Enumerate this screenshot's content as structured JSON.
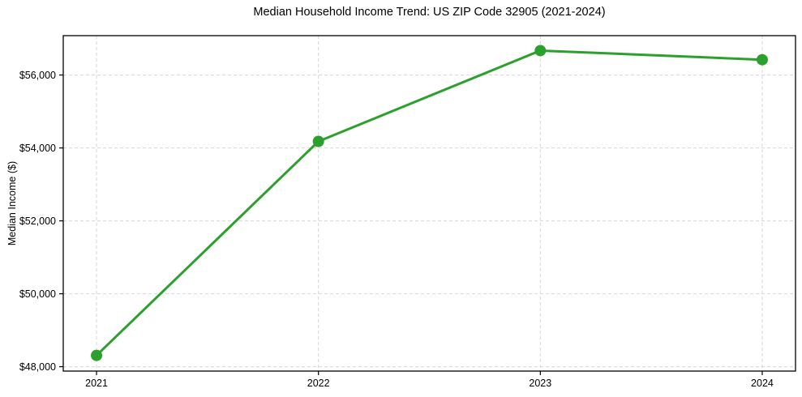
{
  "chart_data": {
    "type": "line",
    "title": "Median Household Income Trend: US ZIP Code 32905 (2021-2024)",
    "xlabel": "",
    "ylabel": "Median Income ($)",
    "x": [
      2021,
      2022,
      2023,
      2024
    ],
    "values": [
      48310,
      54180,
      56670,
      56420
    ],
    "xtick_labels": [
      "2021",
      "2022",
      "2023",
      "2024"
    ],
    "yticks": [
      48000,
      50000,
      52000,
      54000,
      56000
    ],
    "ytick_labels": [
      "$48,000",
      "$50,000",
      "$52,000",
      "$54,000",
      "$56,000"
    ],
    "xlim": [
      2020.85,
      2024.15
    ],
    "ylim": [
      47880,
      57080
    ],
    "grid": true,
    "grid_style": "dashed",
    "legend": "none",
    "line_color": "#2ca02c",
    "marker": "circle",
    "marker_color": "#2ca02c",
    "grid_color": "#d6d6d6",
    "spine_color": "#000000"
  }
}
